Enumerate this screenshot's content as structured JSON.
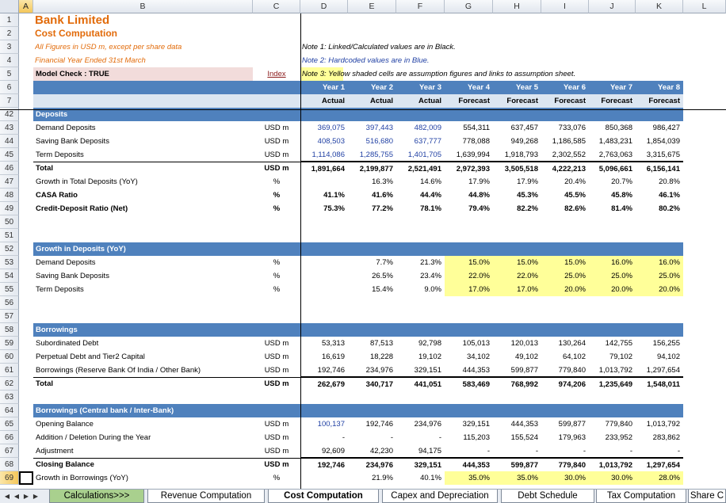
{
  "colors": {
    "accent_orange": "#e26b0a",
    "header_blue": "#4f81bd",
    "light_blue": "#dce6f1",
    "input_blue": "#1f3fa3",
    "assumption_yellow": "#ffff99"
  },
  "columns": [
    "A",
    "B",
    "C",
    "D",
    "E",
    "F",
    "G",
    "H",
    "I",
    "J",
    "K",
    "L"
  ],
  "rows_visible": [
    "1",
    "2",
    "3",
    "4",
    "5",
    "6",
    "7",
    "42",
    "43",
    "44",
    "45",
    "46",
    "47",
    "48",
    "49",
    "50",
    "51",
    "52",
    "53",
    "54",
    "55",
    "56",
    "57",
    "58",
    "59",
    "60",
    "61",
    "62",
    "63",
    "64",
    "65",
    "66",
    "67",
    "68",
    "69"
  ],
  "header": {
    "title": "Bank Limited",
    "subtitle": "Cost Computation",
    "note_figures": "All Figures in USD m, except per share data",
    "note_year": "Financial Year Ended 31st March",
    "model_check": "Model Check : TRUE",
    "index_link": "Index",
    "note1": "Note 1: Linked/Calculated values are in Black.",
    "note2": "Note 2: Hardcoded values are in Blue.",
    "note3": "Note 3: Yellow shaded cells are assumption figures and links to assumption sheet.",
    "years": [
      "Year 1",
      "Year 2",
      "Year 3",
      "Year 4",
      "Year 5",
      "Year 6",
      "Year 7",
      "Year 8"
    ],
    "types": [
      "Actual",
      "Actual",
      "Actual",
      "Forecast",
      "Forecast",
      "Forecast",
      "Forecast",
      "Forecast"
    ]
  },
  "sections": {
    "deposits": "Deposits",
    "growth_deposits": "Growth in Deposits (YoY)",
    "borrowings": "Borrowings",
    "borrowings_cb": "Borrowings (Central bank / Inter-Bank)"
  },
  "rows": {
    "r43": {
      "label": "Demand Deposits",
      "unit": "USD m",
      "values": [
        "369,075",
        "397,443",
        "482,009",
        "554,311",
        "637,457",
        "733,076",
        "850,368",
        "986,427"
      ]
    },
    "r44": {
      "label": "Saving Bank Deposits",
      "unit": "USD m",
      "values": [
        "408,503",
        "516,680",
        "637,777",
        "778,088",
        "949,268",
        "1,186,585",
        "1,483,231",
        "1,854,039"
      ]
    },
    "r45": {
      "label": "Term Deposits",
      "unit": "USD m",
      "values": [
        "1,114,086",
        "1,285,755",
        "1,401,705",
        "1,639,994",
        "1,918,793",
        "2,302,552",
        "2,763,063",
        "3,315,675"
      ]
    },
    "r46": {
      "label": "Total",
      "unit": "USD m",
      "values": [
        "1,891,664",
        "2,199,877",
        "2,521,491",
        "2,972,393",
        "3,505,518",
        "4,222,213",
        "5,096,661",
        "6,156,141"
      ]
    },
    "r47": {
      "label": "Growth in Total Deposits (YoY)",
      "unit": "%",
      "values": [
        "",
        "16.3%",
        "14.6%",
        "17.9%",
        "17.9%",
        "20.4%",
        "20.7%",
        "20.8%"
      ]
    },
    "r48": {
      "label": "CASA Ratio",
      "unit": "%",
      "values": [
        "41.1%",
        "41.6%",
        "44.4%",
        "44.8%",
        "45.3%",
        "45.5%",
        "45.8%",
        "46.1%"
      ]
    },
    "r49": {
      "label": "Credit-Deposit Ratio (Net)",
      "unit": "%",
      "values": [
        "75.3%",
        "77.2%",
        "78.1%",
        "79.4%",
        "82.2%",
        "82.6%",
        "81.4%",
        "80.2%"
      ]
    },
    "r53": {
      "label": "Demand Deposits",
      "unit": "%",
      "values": [
        "",
        "7.7%",
        "21.3%",
        "15.0%",
        "15.0%",
        "15.0%",
        "16.0%",
        "16.0%"
      ]
    },
    "r54": {
      "label": "Saving Bank Deposits",
      "unit": "%",
      "values": [
        "",
        "26.5%",
        "23.4%",
        "22.0%",
        "22.0%",
        "25.0%",
        "25.0%",
        "25.0%"
      ]
    },
    "r55": {
      "label": "Term Deposits",
      "unit": "%",
      "values": [
        "",
        "15.4%",
        "9.0%",
        "17.0%",
        "17.0%",
        "20.0%",
        "20.0%",
        "20.0%"
      ]
    },
    "r59": {
      "label": "Subordinated Debt",
      "unit": "USD m",
      "values": [
        "53,313",
        "87,513",
        "92,798",
        "105,013",
        "120,013",
        "130,264",
        "142,755",
        "156,255"
      ]
    },
    "r60": {
      "label": "Perpetual Debt and Tier2 Capital",
      "unit": "USD m",
      "values": [
        "16,619",
        "18,228",
        "19,102",
        "34,102",
        "49,102",
        "64,102",
        "79,102",
        "94,102"
      ]
    },
    "r61": {
      "label": "Borrowings (Reserve Bank Of India / Other Bank)",
      "unit": "USD m",
      "values": [
        "192,746",
        "234,976",
        "329,151",
        "444,353",
        "599,877",
        "779,840",
        "1,013,792",
        "1,297,654"
      ]
    },
    "r62": {
      "label": "Total",
      "unit": "USD m",
      "values": [
        "262,679",
        "340,717",
        "441,051",
        "583,469",
        "768,992",
        "974,206",
        "1,235,649",
        "1,548,011"
      ]
    },
    "r65": {
      "label": "Opening Balance",
      "unit": "USD m",
      "values": [
        "100,137",
        "192,746",
        "234,976",
        "329,151",
        "444,353",
        "599,877",
        "779,840",
        "1,013,792"
      ]
    },
    "r66": {
      "label": "Addition / Deletion During the Year",
      "unit": "USD m",
      "values": [
        "-",
        "-",
        "-",
        "115,203",
        "155,524",
        "179,963",
        "233,952",
        "283,862"
      ]
    },
    "r67": {
      "label": "Adjustment",
      "unit": "USD m",
      "values": [
        "92,609",
        "42,230",
        "94,175",
        "-",
        "-",
        "-",
        "-",
        "-"
      ]
    },
    "r68": {
      "label": "Closing Balance",
      "unit": "USD m",
      "values": [
        "192,746",
        "234,976",
        "329,151",
        "444,353",
        "599,877",
        "779,840",
        "1,013,792",
        "1,297,654"
      ]
    },
    "r69": {
      "label": "Growth in Borrowings (YoY)",
      "unit": "%",
      "values": [
        "",
        "21.9%",
        "40.1%",
        "35.0%",
        "35.0%",
        "30.0%",
        "30.0%",
        "28.0%"
      ]
    }
  },
  "tabs": [
    "Calculations>>>",
    "Revenue Computation",
    "Cost Computation",
    "Capex and Depreciation",
    "Debt Schedule",
    "Tax Computation",
    "Share C"
  ],
  "active_tab": "Cost Computation",
  "nav_icons": [
    "first-sheet-icon",
    "prev-sheet-icon",
    "next-sheet-icon",
    "last-sheet-icon"
  ]
}
